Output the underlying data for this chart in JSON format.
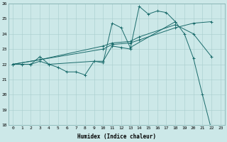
{
  "xlabel": "Humidex (Indice chaleur)",
  "xlim": [
    -0.5,
    23.5
  ],
  "ylim": [
    18,
    26
  ],
  "yticks": [
    18,
    19,
    20,
    21,
    22,
    23,
    24,
    25,
    26
  ],
  "xticks": [
    0,
    1,
    2,
    3,
    4,
    5,
    6,
    7,
    8,
    9,
    10,
    11,
    12,
    13,
    14,
    15,
    16,
    17,
    18,
    19,
    20,
    21,
    22,
    23
  ],
  "bg_color": "#cce8e8",
  "grid_color": "#a8cccc",
  "line_color": "#1a6b6b",
  "line1_x": [
    0,
    1,
    2,
    3,
    4,
    5,
    6,
    7,
    8,
    9,
    10,
    11,
    12,
    13,
    14,
    15,
    16,
    17,
    18,
    19,
    20,
    21,
    22
  ],
  "line1_y": [
    22,
    22,
    22,
    22.2,
    22,
    21.8,
    21.5,
    21.5,
    21.3,
    22.2,
    22.2,
    23.2,
    23.1,
    23.0,
    25.8,
    25.3,
    25.5,
    25.4,
    24.8,
    24.0,
    22.4,
    20.0,
    17.7
  ],
  "line2_x": [
    0,
    1,
    2,
    3,
    4,
    9,
    10,
    11,
    12,
    13,
    18
  ],
  "line2_y": [
    22,
    22,
    22,
    22.5,
    22,
    22.2,
    22.1,
    24.7,
    24.4,
    23.1,
    24.8
  ],
  "line3_x": [
    0,
    3,
    10,
    11,
    13,
    14,
    18,
    20,
    22
  ],
  "line3_y": [
    22,
    22.3,
    23.0,
    23.3,
    23.4,
    23.6,
    24.4,
    24.7,
    24.8
  ],
  "line4_x": [
    0,
    3,
    10,
    11,
    13,
    14,
    18,
    20,
    22
  ],
  "line4_y": [
    22,
    22.3,
    23.2,
    23.4,
    23.5,
    23.8,
    24.6,
    24.0,
    22.5
  ]
}
